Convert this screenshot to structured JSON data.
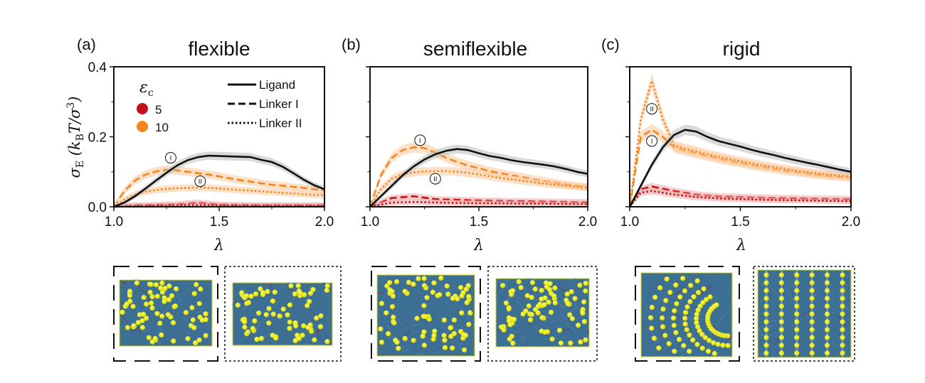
{
  "colors": {
    "ligand": "#111111",
    "eps5": "#c0141a",
    "eps10": "#f5861f",
    "band_black": "#bbbbbb",
    "band_eps5": "#f2a6a6",
    "band_eps10": "#f9c89a",
    "snapshot_bg": "#3d6e93",
    "bead": "#f0f000"
  },
  "legend": {
    "eps_title": "εc",
    "eps_entries": [
      {
        "label": "5",
        "color": "#c0141a"
      },
      {
        "label": "10",
        "color": "#f5861f"
      }
    ],
    "style_entries": [
      {
        "label": "Ligand",
        "dash": "solid"
      },
      {
        "label": "Linker I",
        "dash": "dashed"
      },
      {
        "label": "Linker II",
        "dash": "dotted"
      }
    ]
  },
  "chart_data": [
    {
      "type": "line",
      "panel_label": "(a)",
      "title": "flexible",
      "xlabel": "λ",
      "ylabel": "σE (kBT/σ³)",
      "xlim": [
        1.0,
        2.0
      ],
      "ylim": [
        0.0,
        0.4
      ],
      "xticks": [
        "1.0",
        "1.5",
        "2.0"
      ],
      "yticks": [
        "0.0",
        "0.2",
        "0.4"
      ],
      "annotations": [
        {
          "text": "I",
          "x": 1.27,
          "y": 0.14
        },
        {
          "text": "II",
          "x": 1.41,
          "y": 0.073
        }
      ],
      "series": [
        {
          "name": "Ligand",
          "color_key": "ligand",
          "dash": "solid",
          "x": [
            1.0,
            1.05,
            1.1,
            1.15,
            1.2,
            1.25,
            1.3,
            1.35,
            1.4,
            1.45,
            1.5,
            1.55,
            1.6,
            1.65,
            1.7,
            1.75,
            1.8,
            1.85,
            1.9,
            1.95,
            2.0
          ],
          "y": [
            0.0,
            0.012,
            0.03,
            0.052,
            0.075,
            0.097,
            0.118,
            0.133,
            0.142,
            0.146,
            0.145,
            0.144,
            0.143,
            0.142,
            0.134,
            0.128,
            0.115,
            0.097,
            0.078,
            0.062,
            0.05
          ]
        },
        {
          "name": "Linker I (εc=10)",
          "color_key": "eps10",
          "dash": "dashed",
          "x": [
            1.0,
            1.05,
            1.1,
            1.15,
            1.2,
            1.25,
            1.3,
            1.35,
            1.4,
            1.45,
            1.5,
            1.55,
            1.6,
            1.65,
            1.7,
            1.75,
            1.8,
            1.85,
            1.9,
            1.95,
            2.0
          ],
          "y": [
            0.0,
            0.045,
            0.075,
            0.092,
            0.101,
            0.106,
            0.104,
            0.1,
            0.096,
            0.092,
            0.087,
            0.081,
            0.076,
            0.072,
            0.067,
            0.063,
            0.06,
            0.057,
            0.054,
            0.05,
            0.047
          ]
        },
        {
          "name": "Linker II (εc=10)",
          "color_key": "eps10",
          "dash": "dotted",
          "x": [
            1.0,
            1.05,
            1.1,
            1.15,
            1.2,
            1.25,
            1.3,
            1.35,
            1.4,
            1.45,
            1.5,
            1.55,
            1.6,
            1.65,
            1.7,
            1.75,
            1.8,
            1.85,
            1.9,
            1.95,
            2.0
          ],
          "y": [
            0.0,
            0.02,
            0.035,
            0.043,
            0.048,
            0.051,
            0.053,
            0.054,
            0.055,
            0.054,
            0.052,
            0.05,
            0.048,
            0.046,
            0.044,
            0.042,
            0.04,
            0.038,
            0.036,
            0.034,
            0.033
          ]
        },
        {
          "name": "Linker I (εc=5)",
          "color_key": "eps5",
          "dash": "dashed",
          "x": [
            1.0,
            1.1,
            1.2,
            1.3,
            1.4,
            1.5,
            1.6,
            1.7,
            1.8,
            1.9,
            2.0
          ],
          "y": [
            0.0,
            0.004,
            0.005,
            0.007,
            0.012,
            0.006,
            0.005,
            0.004,
            0.004,
            0.004,
            0.004
          ]
        },
        {
          "name": "Linker II (εc=5)",
          "color_key": "eps5",
          "dash": "dotted",
          "x": [
            1.0,
            1.1,
            1.2,
            1.3,
            1.4,
            1.5,
            1.6,
            1.7,
            1.8,
            1.9,
            2.0
          ],
          "y": [
            0.0,
            0.002,
            0.003,
            0.004,
            0.005,
            0.004,
            0.003,
            0.003,
            0.003,
            0.003,
            0.003
          ]
        }
      ]
    },
    {
      "type": "line",
      "panel_label": "(b)",
      "title": "semiflexible",
      "xlabel": "λ",
      "ylabel": "",
      "xlim": [
        1.0,
        2.0
      ],
      "ylim": [
        0.0,
        0.4
      ],
      "xticks": [
        "1.0",
        "1.5",
        "2.0"
      ],
      "yticks": [],
      "annotations": [
        {
          "text": "I",
          "x": 1.23,
          "y": 0.19
        },
        {
          "text": "II",
          "x": 1.3,
          "y": 0.08
        }
      ],
      "series": [
        {
          "name": "Ligand",
          "color_key": "ligand",
          "dash": "solid",
          "x": [
            1.0,
            1.05,
            1.1,
            1.15,
            1.2,
            1.25,
            1.3,
            1.35,
            1.4,
            1.45,
            1.5,
            1.55,
            1.6,
            1.65,
            1.7,
            1.75,
            1.8,
            1.85,
            1.9,
            1.95,
            2.0
          ],
          "y": [
            0.0,
            0.03,
            0.06,
            0.09,
            0.115,
            0.135,
            0.15,
            0.16,
            0.165,
            0.162,
            0.153,
            0.145,
            0.14,
            0.133,
            0.128,
            0.124,
            0.12,
            0.115,
            0.108,
            0.1,
            0.094
          ]
        },
        {
          "name": "Linker I (εc=10)",
          "color_key": "eps10",
          "dash": "dashed",
          "x": [
            1.0,
            1.05,
            1.1,
            1.15,
            1.2,
            1.25,
            1.3,
            1.35,
            1.4,
            1.45,
            1.5,
            1.55,
            1.6,
            1.65,
            1.7,
            1.75,
            1.8,
            1.85,
            1.9,
            1.95,
            2.0
          ],
          "y": [
            0.0,
            0.09,
            0.14,
            0.162,
            0.17,
            0.168,
            0.155,
            0.14,
            0.128,
            0.118,
            0.11,
            0.102,
            0.096,
            0.09,
            0.085,
            0.079,
            0.074,
            0.069,
            0.064,
            0.06,
            0.056
          ]
        },
        {
          "name": "Linker II (εc=10)",
          "color_key": "eps10",
          "dash": "dotted",
          "x": [
            1.0,
            1.05,
            1.1,
            1.15,
            1.2,
            1.25,
            1.3,
            1.35,
            1.4,
            1.45,
            1.5,
            1.55,
            1.6,
            1.65,
            1.7,
            1.75,
            1.8,
            1.85,
            1.9,
            1.95,
            2.0
          ],
          "y": [
            0.0,
            0.05,
            0.08,
            0.093,
            0.098,
            0.101,
            0.102,
            0.102,
            0.1,
            0.097,
            0.092,
            0.087,
            0.082,
            0.078,
            0.074,
            0.07,
            0.066,
            0.063,
            0.06,
            0.057,
            0.055
          ]
        },
        {
          "name": "Linker I (εc=5)",
          "color_key": "eps5",
          "dash": "dashed",
          "x": [
            1.0,
            1.1,
            1.2,
            1.3,
            1.4,
            1.5,
            1.6,
            1.7,
            1.8,
            1.9,
            2.0
          ],
          "y": [
            0.0,
            0.025,
            0.03,
            0.022,
            0.02,
            0.018,
            0.017,
            0.016,
            0.015,
            0.014,
            0.013
          ]
        },
        {
          "name": "Linker II (εc=5)",
          "color_key": "eps5",
          "dash": "dotted",
          "x": [
            1.0,
            1.1,
            1.2,
            1.3,
            1.4,
            1.5,
            1.6,
            1.7,
            1.8,
            1.9,
            2.0
          ],
          "y": [
            0.0,
            0.012,
            0.014,
            0.012,
            0.011,
            0.01,
            0.01,
            0.009,
            0.009,
            0.008,
            0.008
          ]
        }
      ]
    },
    {
      "type": "line",
      "panel_label": "(c)",
      "title": "rigid",
      "xlabel": "λ",
      "ylabel": "",
      "xlim": [
        1.0,
        2.0
      ],
      "ylim": [
        0.0,
        0.4
      ],
      "xticks": [
        "1.0",
        "1.5",
        "2.0"
      ],
      "yticks": [],
      "annotations": [
        {
          "text": "II",
          "x": 1.1,
          "y": 0.28
        },
        {
          "text": "I",
          "x": 1.1,
          "y": 0.188
        }
      ],
      "series": [
        {
          "name": "Ligand",
          "color_key": "ligand",
          "dash": "solid",
          "x": [
            1.0,
            1.05,
            1.1,
            1.15,
            1.2,
            1.25,
            1.3,
            1.35,
            1.4,
            1.45,
            1.5,
            1.55,
            1.6,
            1.65,
            1.7,
            1.75,
            1.8,
            1.85,
            1.9,
            1.95,
            2.0
          ],
          "y": [
            0.0,
            0.06,
            0.12,
            0.17,
            0.205,
            0.22,
            0.215,
            0.2,
            0.188,
            0.18,
            0.172,
            0.163,
            0.155,
            0.148,
            0.14,
            0.133,
            0.126,
            0.12,
            0.113,
            0.106,
            0.1
          ]
        },
        {
          "name": "Linker I (εc=10)",
          "color_key": "eps10",
          "dash": "dashed",
          "x": [
            1.0,
            1.05,
            1.1,
            1.15,
            1.2,
            1.25,
            1.3,
            1.35,
            1.4,
            1.45,
            1.5,
            1.55,
            1.6,
            1.65,
            1.7,
            1.75,
            1.8,
            1.85,
            1.9,
            1.95,
            2.0
          ],
          "y": [
            0.0,
            0.2,
            0.22,
            0.2,
            0.17,
            0.16,
            0.153,
            0.145,
            0.138,
            0.131,
            0.125,
            0.119,
            0.113,
            0.108,
            0.103,
            0.099,
            0.095,
            0.091,
            0.088,
            0.085,
            0.082
          ]
        },
        {
          "name": "Linker II (εc=10)",
          "color_key": "eps10",
          "dash": "dotted",
          "x": [
            1.0,
            1.05,
            1.1,
            1.15,
            1.2,
            1.25,
            1.3,
            1.35,
            1.4,
            1.45,
            1.5,
            1.55,
            1.6,
            1.65,
            1.7,
            1.75,
            1.8,
            1.85,
            1.9,
            1.95,
            2.0
          ],
          "y": [
            0.0,
            0.25,
            0.36,
            0.25,
            0.175,
            0.165,
            0.158,
            0.15,
            0.143,
            0.136,
            0.13,
            0.124,
            0.118,
            0.113,
            0.108,
            0.103,
            0.099,
            0.095,
            0.092,
            0.089,
            0.086
          ]
        },
        {
          "name": "Linker I (εc=5)",
          "color_key": "eps5",
          "dash": "dashed",
          "x": [
            1.0,
            1.05,
            1.1,
            1.2,
            1.3,
            1.4,
            1.5,
            1.6,
            1.7,
            1.8,
            1.9,
            2.0
          ],
          "y": [
            0.0,
            0.05,
            0.058,
            0.045,
            0.035,
            0.03,
            0.028,
            0.026,
            0.025,
            0.024,
            0.023,
            0.022
          ]
        },
        {
          "name": "Linker II (εc=5)",
          "color_key": "eps5",
          "dash": "dotted",
          "x": [
            1.0,
            1.05,
            1.1,
            1.2,
            1.3,
            1.4,
            1.5,
            1.6,
            1.7,
            1.8,
            1.9,
            2.0
          ],
          "y": [
            0.0,
            0.04,
            0.045,
            0.035,
            0.028,
            0.024,
            0.022,
            0.02,
            0.019,
            0.018,
            0.017,
            0.016
          ]
        }
      ]
    }
  ],
  "snapshots": [
    {
      "panel": "a",
      "frame": "dashed",
      "pattern": "random"
    },
    {
      "panel": "a",
      "frame": "dotted",
      "pattern": "random"
    },
    {
      "panel": "b",
      "frame": "dashed",
      "pattern": "strings"
    },
    {
      "panel": "b",
      "frame": "dotted",
      "pattern": "strings"
    },
    {
      "panel": "c",
      "frame": "dashed",
      "pattern": "arcs"
    },
    {
      "panel": "c",
      "frame": "dotted",
      "pattern": "columns"
    }
  ]
}
